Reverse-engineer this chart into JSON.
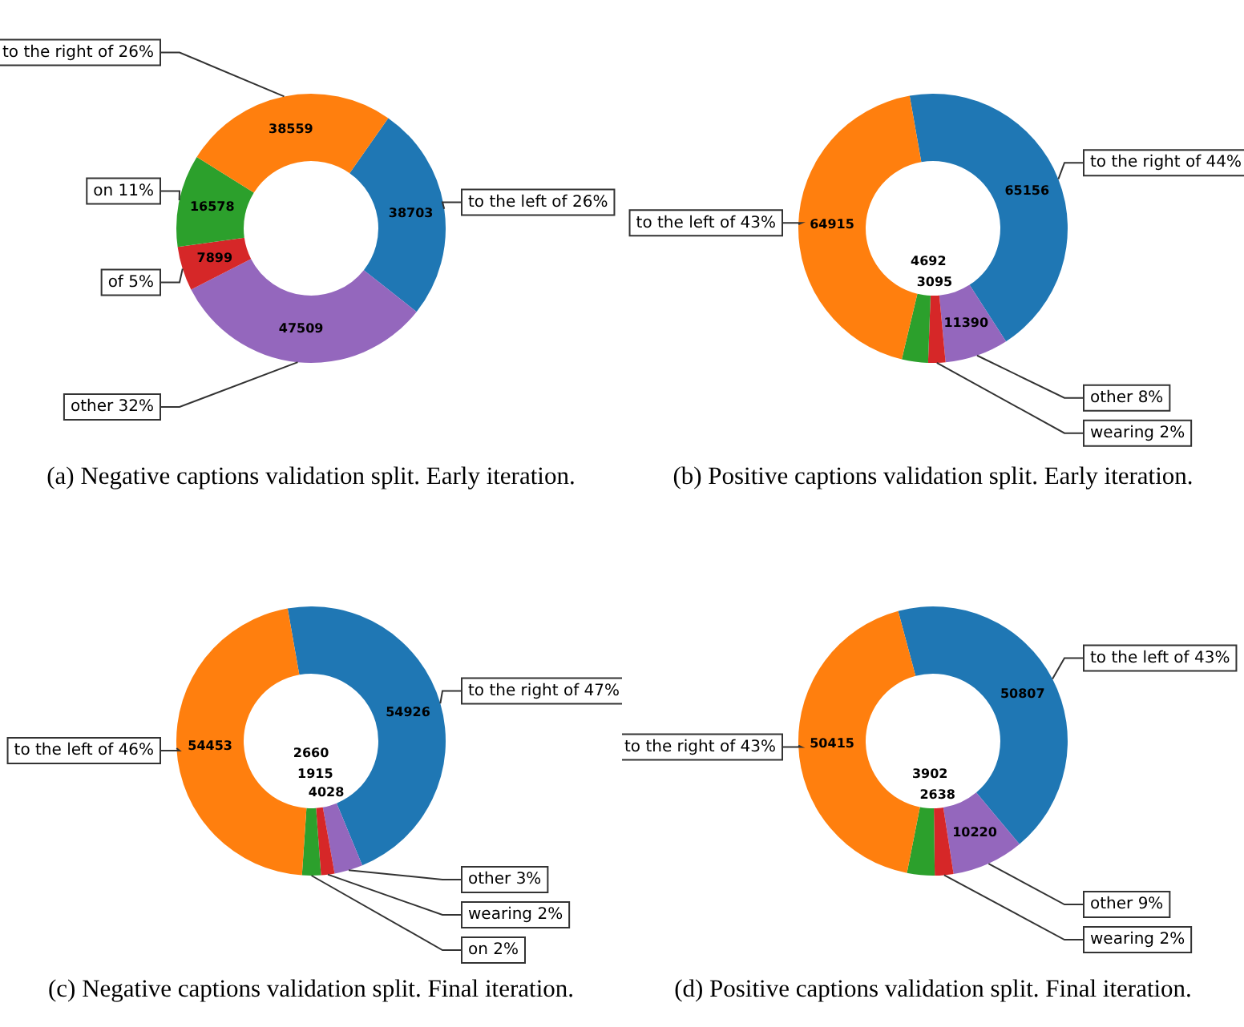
{
  "chart_data": [
    {
      "type": "donut",
      "title": "(a) Negative captions validation split. Early iteration.",
      "categories": [
        "to the left of 26%",
        "other 32%",
        "of 5%",
        "on 11%",
        "to the right of 26%"
      ],
      "values": [
        38703,
        47509,
        7899,
        16578,
        38559
      ],
      "colors": [
        "#1f77b4",
        "#9467bd",
        "#d62728",
        "#2ca02c",
        "#ff7f0e"
      ],
      "data_labels": true,
      "legend": false
    },
    {
      "type": "donut",
      "title": "(b) Positive captions validation split. Early iteration.",
      "categories": [
        "to the right of 44%",
        "other 8%",
        "wearing 2%",
        null,
        "to the left of 43%"
      ],
      "values": [
        65156,
        11390,
        3095,
        4692,
        64915
      ],
      "colors": [
        "#1f77b4",
        "#9467bd",
        "#d62728",
        "#2ca02c",
        "#ff7f0e"
      ],
      "data_labels": true,
      "legend": false
    },
    {
      "type": "donut",
      "title": "(c) Negative captions validation split. Final iteration.",
      "categories": [
        "to the right of 47%",
        "other 3%",
        "wearing 2%",
        "on 2%",
        "to the left of 46%"
      ],
      "values": [
        54926,
        4028,
        1915,
        2660,
        54453
      ],
      "colors": [
        "#1f77b4",
        "#9467bd",
        "#d62728",
        "#2ca02c",
        "#ff7f0e"
      ],
      "data_labels": true,
      "legend": false
    },
    {
      "type": "donut",
      "title": "(d) Positive captions validation split. Final iteration.",
      "categories": [
        "to the left of 43%",
        "other 9%",
        "wearing 2%",
        null,
        "to the right of 43%"
      ],
      "values": [
        50807,
        10220,
        2638,
        3902,
        50415
      ],
      "colors": [
        "#1f77b4",
        "#9467bd",
        "#d62728",
        "#2ca02c",
        "#ff7f0e"
      ],
      "data_labels": true,
      "legend": false
    }
  ]
}
